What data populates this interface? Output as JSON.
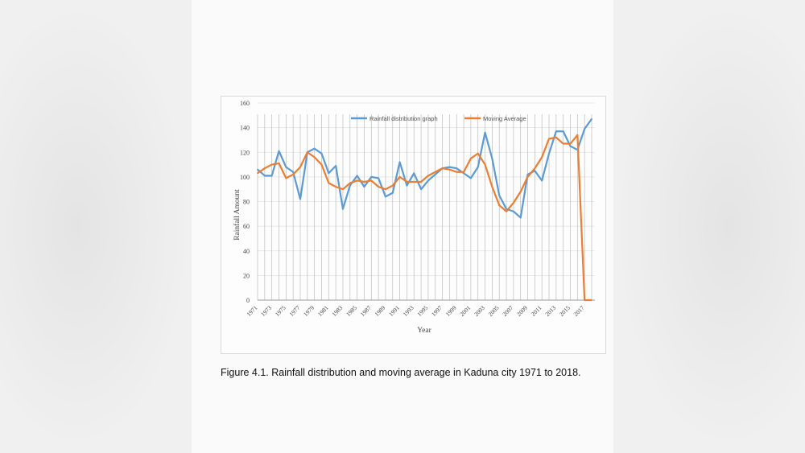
{
  "caption": "Figure 4.1. Rainfall distribution and moving average in Kaduna city 1971 to 2018.",
  "colors": {
    "rainfall": "#5b9bd5",
    "moving_average": "#ed7d31",
    "grid": "#bdbdbd"
  },
  "chart_data": {
    "type": "line",
    "title": "",
    "xlabel": "Year",
    "ylabel": "Rainfall Amount",
    "ylim": [
      0,
      160
    ],
    "yticks": [
      0,
      20,
      40,
      60,
      80,
      100,
      120,
      140,
      160
    ],
    "grid": "vertical lines at every category",
    "legend_position": "top",
    "x": [
      1971,
      1972,
      1973,
      1974,
      1975,
      1976,
      1977,
      1978,
      1979,
      1980,
      1981,
      1982,
      1983,
      1984,
      1985,
      1986,
      1987,
      1988,
      1989,
      1990,
      1991,
      1992,
      1993,
      1994,
      1995,
      1996,
      1997,
      1998,
      1999,
      2000,
      2001,
      2002,
      2003,
      2004,
      2005,
      2006,
      2007,
      2008,
      2009,
      2010,
      2011,
      2012,
      2013,
      2014,
      2015,
      2016,
      2017,
      2018
    ],
    "tick_labels": [
      "1971",
      "1973",
      "1975",
      "1977",
      "1979",
      "1981",
      "1983",
      "1985",
      "1987",
      "1989",
      "1991",
      "1993",
      "1995",
      "1997",
      "1999",
      "2001",
      "2003",
      "2005",
      "2007",
      "2009",
      "2011",
      "2013",
      "2015",
      "2017"
    ],
    "series": [
      {
        "name": "Rainfall distribution graph",
        "values": [
          106,
          101,
          101,
          121,
          108,
          104,
          82,
          120,
          123,
          119,
          103,
          109,
          74,
          93,
          101,
          92,
          100,
          99,
          84,
          87,
          112,
          93,
          103,
          90,
          97,
          102,
          107,
          108,
          107,
          103,
          99,
          108,
          136,
          115,
          85,
          74,
          72,
          67,
          102,
          105,
          97,
          119,
          137,
          137,
          125,
          122,
          139,
          147
        ]
      },
      {
        "name": "Moving Average",
        "values": [
          103,
          107,
          110,
          111,
          99,
          102,
          108,
          120,
          116,
          110,
          95,
          92,
          90,
          95,
          97,
          96,
          97,
          92,
          90,
          93,
          100,
          96,
          96,
          96,
          101,
          104,
          107,
          106,
          104,
          104,
          115,
          119,
          110,
          92,
          77,
          72,
          79,
          88,
          100,
          107,
          116,
          131,
          132,
          127,
          127,
          134,
          0,
          0
        ]
      }
    ]
  }
}
